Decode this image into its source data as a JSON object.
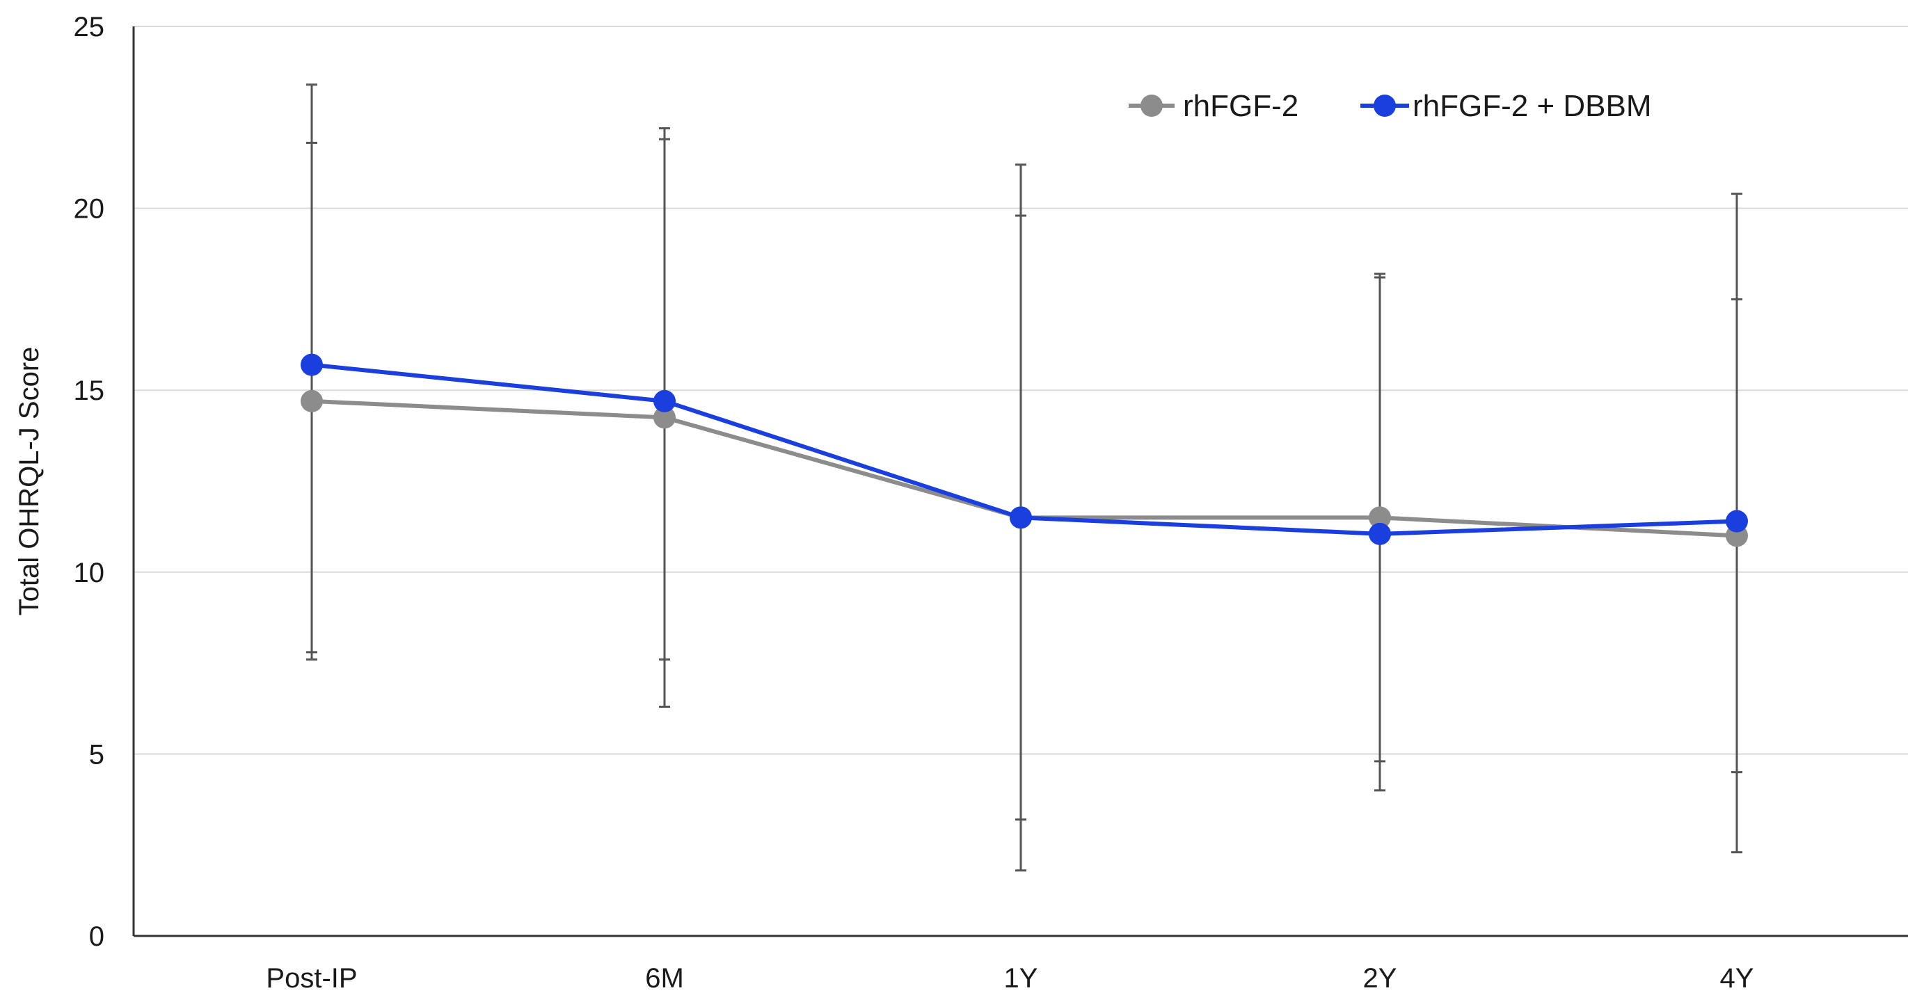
{
  "chart_data": {
    "type": "line",
    "title": "",
    "xlabel": "",
    "ylabel": "Total OHRQL-J Score",
    "categories": [
      "Post-IP",
      "6M",
      "1Y",
      "2Y",
      "4Y"
    ],
    "ylim": [
      0,
      25
    ],
    "yticks": [
      0,
      5,
      10,
      15,
      20,
      25
    ],
    "grid": "horizontal",
    "legend_position": "top-right",
    "series": [
      {
        "name": "rhFGF-2",
        "color": "#8c8c8c",
        "values": [
          14.7,
          14.25,
          11.5,
          11.5,
          11.0
        ],
        "error_low": [
          7.6,
          6.3,
          3.2,
          4.0,
          2.3
        ],
        "error_high": [
          21.8,
          22.2,
          19.8,
          18.2,
          20.4
        ]
      },
      {
        "name": "rhFGF-2 + DBBM",
        "color": "#1a3fdc",
        "values": [
          15.7,
          14.7,
          11.5,
          11.05,
          11.4
        ],
        "error_low": [
          7.8,
          7.6,
          1.8,
          4.8,
          4.5
        ],
        "error_high": [
          23.4,
          21.9,
          21.2,
          18.1,
          17.5
        ]
      }
    ]
  }
}
